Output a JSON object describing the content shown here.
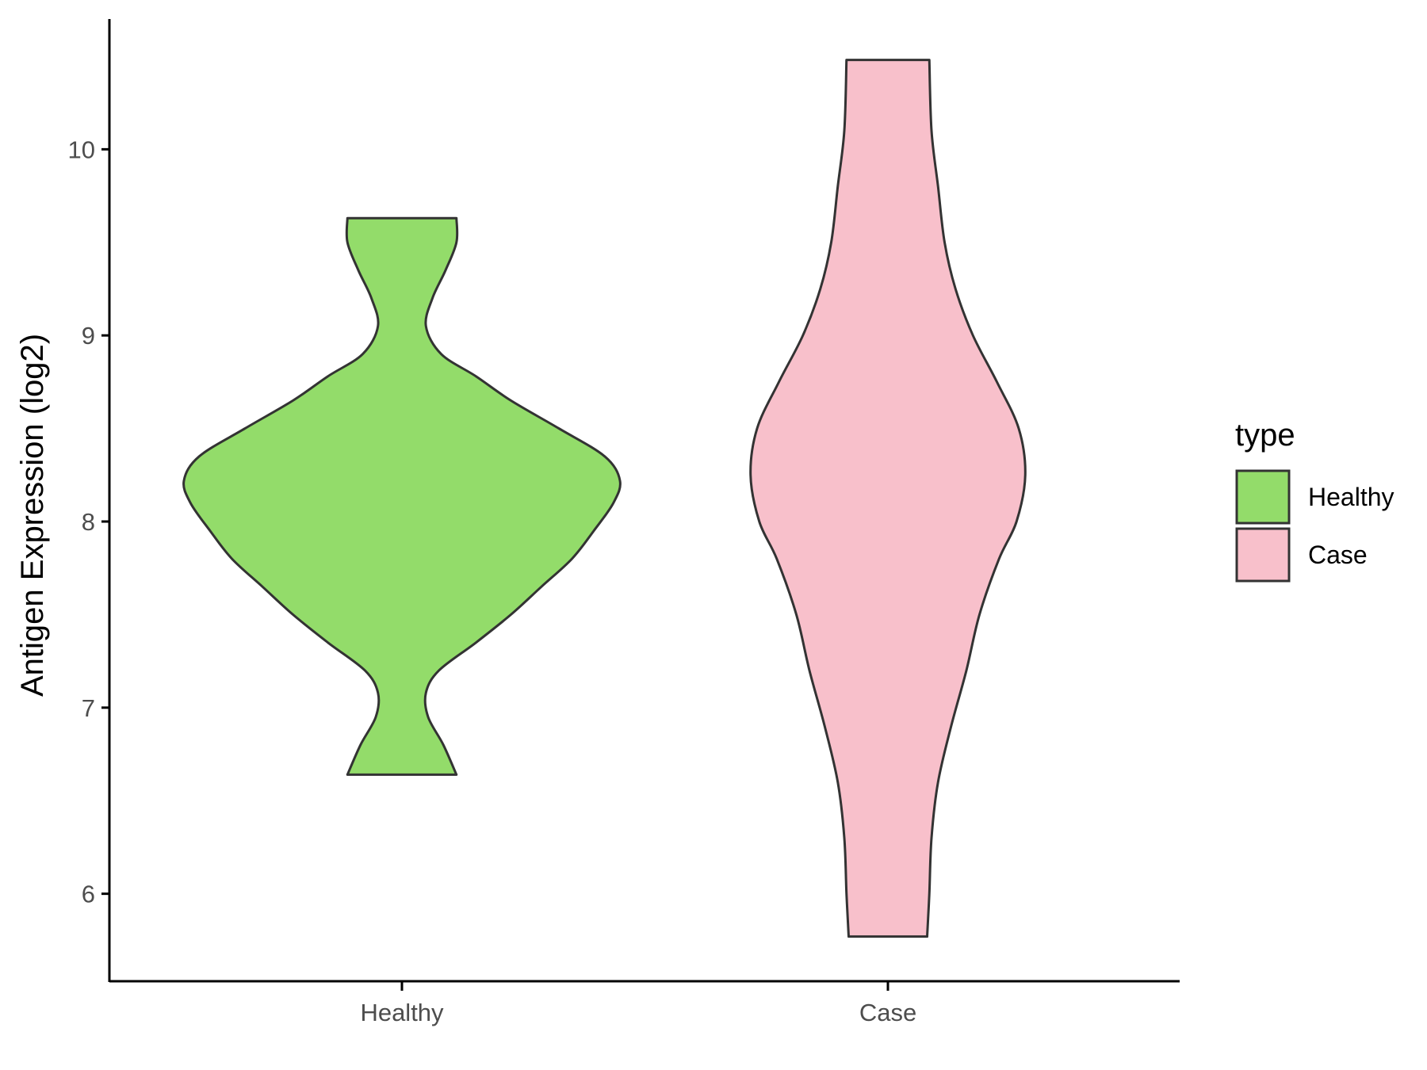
{
  "chart_data": {
    "type": "violin",
    "title": "",
    "xlabel": "",
    "ylabel": "Antigen Expression (log2)",
    "categories": [
      "Healthy",
      "Case"
    ],
    "yticks": [
      6,
      7,
      8,
      9,
      10
    ],
    "ylim": [
      5.53,
      10.7
    ],
    "grid": false,
    "legend": {
      "title": "type",
      "position": "right",
      "entries": [
        {
          "label": "Healthy",
          "color": "#93DC6A"
        },
        {
          "label": "Case",
          "color": "#F8C0CB"
        }
      ]
    },
    "series": [
      {
        "category": "Healthy",
        "color": "#93DC6A",
        "ymin": 6.64,
        "ymax": 9.63,
        "density_profile": [
          [
            6.64,
            0.25
          ],
          [
            6.8,
            0.19
          ],
          [
            6.95,
            0.12
          ],
          [
            7.08,
            0.11
          ],
          [
            7.2,
            0.17
          ],
          [
            7.35,
            0.34
          ],
          [
            7.5,
            0.5
          ],
          [
            7.65,
            0.64
          ],
          [
            7.8,
            0.78
          ],
          [
            7.95,
            0.88
          ],
          [
            8.1,
            0.97
          ],
          [
            8.22,
            1.0
          ],
          [
            8.35,
            0.93
          ],
          [
            8.5,
            0.72
          ],
          [
            8.65,
            0.5
          ],
          [
            8.78,
            0.34
          ],
          [
            8.9,
            0.18
          ],
          [
            9.05,
            0.11
          ],
          [
            9.2,
            0.14
          ],
          [
            9.35,
            0.2
          ],
          [
            9.5,
            0.25
          ],
          [
            9.63,
            0.25
          ]
        ]
      },
      {
        "category": "Case",
        "color": "#F8C0CB",
        "ymin": 5.77,
        "ymax": 10.48,
        "density_profile": [
          [
            5.77,
            0.18
          ],
          [
            6.0,
            0.19
          ],
          [
            6.3,
            0.2
          ],
          [
            6.6,
            0.23
          ],
          [
            6.9,
            0.29
          ],
          [
            7.2,
            0.36
          ],
          [
            7.5,
            0.42
          ],
          [
            7.8,
            0.51
          ],
          [
            8.0,
            0.59
          ],
          [
            8.25,
            0.63
          ],
          [
            8.5,
            0.6
          ],
          [
            8.75,
            0.5
          ],
          [
            9.0,
            0.39
          ],
          [
            9.25,
            0.31
          ],
          [
            9.5,
            0.26
          ],
          [
            9.8,
            0.23
          ],
          [
            10.1,
            0.2
          ],
          [
            10.48,
            0.19
          ]
        ]
      }
    ]
  }
}
